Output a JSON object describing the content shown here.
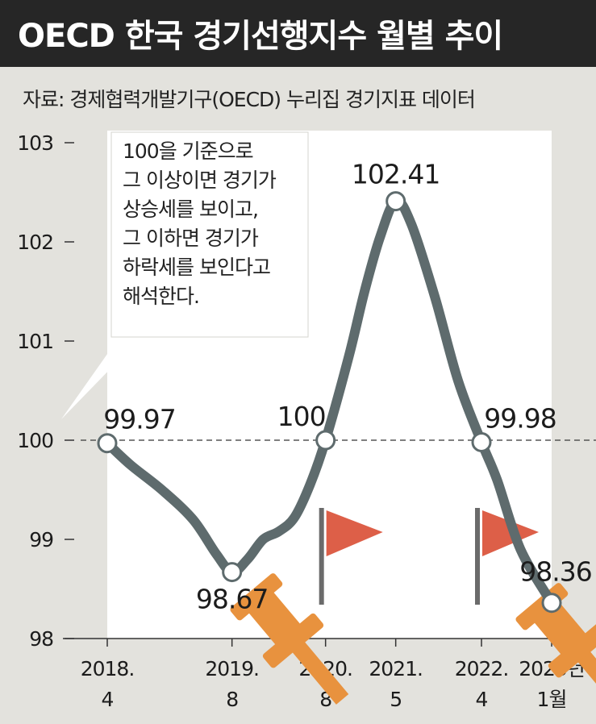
{
  "header": {
    "title": "OECD 한국 경기선행지수 월별 추이",
    "source": "자료: 경제협력개발기구(OECD) 누리집 경기지표 데이터"
  },
  "annotation": {
    "text": "100을 기준으로\n그 이상이면 경기가\n상승세를 보이고,\n그 이하면 경기가\n하락세를 보인다고\n해석한다."
  },
  "colors": {
    "background": "#e3e2dd",
    "header": "#262626",
    "line": "#5e6b6d",
    "flag": "#dd5f48",
    "pin": "#e8923e"
  },
  "chart_data": {
    "type": "line",
    "ylim": [
      98,
      103
    ],
    "yticks": [
      {
        "value": 103,
        "label": "103"
      },
      {
        "value": 102,
        "label": "102"
      },
      {
        "value": 101,
        "label": "101"
      },
      {
        "value": 100,
        "label": "100"
      },
      {
        "value": 99,
        "label": "99"
      },
      {
        "value": 98,
        "label": "98"
      }
    ],
    "reference_line": 100,
    "xticks": [
      {
        "label": "2018.",
        "sub": "4"
      },
      {
        "label": "2019.",
        "sub": "8"
      },
      {
        "label": "2020.",
        "sub": "8"
      },
      {
        "label": "2021.",
        "sub": "5"
      },
      {
        "label": "2022.",
        "sub": "4"
      },
      {
        "label": "2023년",
        "sub": "1월"
      }
    ],
    "points": [
      {
        "date": "2018.4",
        "value": 99.97,
        "label": "99.97"
      },
      {
        "date": "2019.8",
        "value": 98.67,
        "label": "98.67"
      },
      {
        "date": "2020.8",
        "value": 100,
        "label": "100"
      },
      {
        "date": "2021.5",
        "value": 102.41,
        "label": "102.41"
      },
      {
        "date": "2022.4",
        "value": 99.98,
        "label": "99.98"
      },
      {
        "date": "2023.1",
        "value": 98.36,
        "label": "98.36"
      }
    ],
    "line": [
      {
        "date": "2018.4",
        "value": 99.97
      },
      {
        "date": "2018.7",
        "value": 99.75
      },
      {
        "date": "2018.11",
        "value": 99.5
      },
      {
        "date": "2019.3",
        "value": 99.2
      },
      {
        "date": "2019.6",
        "value": 98.85
      },
      {
        "date": "2019.8",
        "value": 98.67
      },
      {
        "date": "2019.10",
        "value": 98.8
      },
      {
        "date": "2019.12",
        "value": 99.0
      },
      {
        "date": "2020.2",
        "value": 99.08
      },
      {
        "date": "2020.4",
        "value": 99.22
      },
      {
        "date": "2020.6",
        "value": 99.55
      },
      {
        "date": "2020.8",
        "value": 100
      },
      {
        "date": "2020.11",
        "value": 100.85
      },
      {
        "date": "2021.1",
        "value": 101.5
      },
      {
        "date": "2021.3",
        "value": 102.05
      },
      {
        "date": "2021.5",
        "value": 102.41
      },
      {
        "date": "2021.7",
        "value": 102.18
      },
      {
        "date": "2021.10",
        "value": 101.45
      },
      {
        "date": "2022.1",
        "value": 100.6
      },
      {
        "date": "2022.4",
        "value": 99.98
      },
      {
        "date": "2022.6",
        "value": 99.6
      },
      {
        "date": "2022.9",
        "value": 98.9
      },
      {
        "date": "2023.1",
        "value": 98.36
      }
    ],
    "flags": [
      "2020.8",
      "2022.4"
    ]
  }
}
